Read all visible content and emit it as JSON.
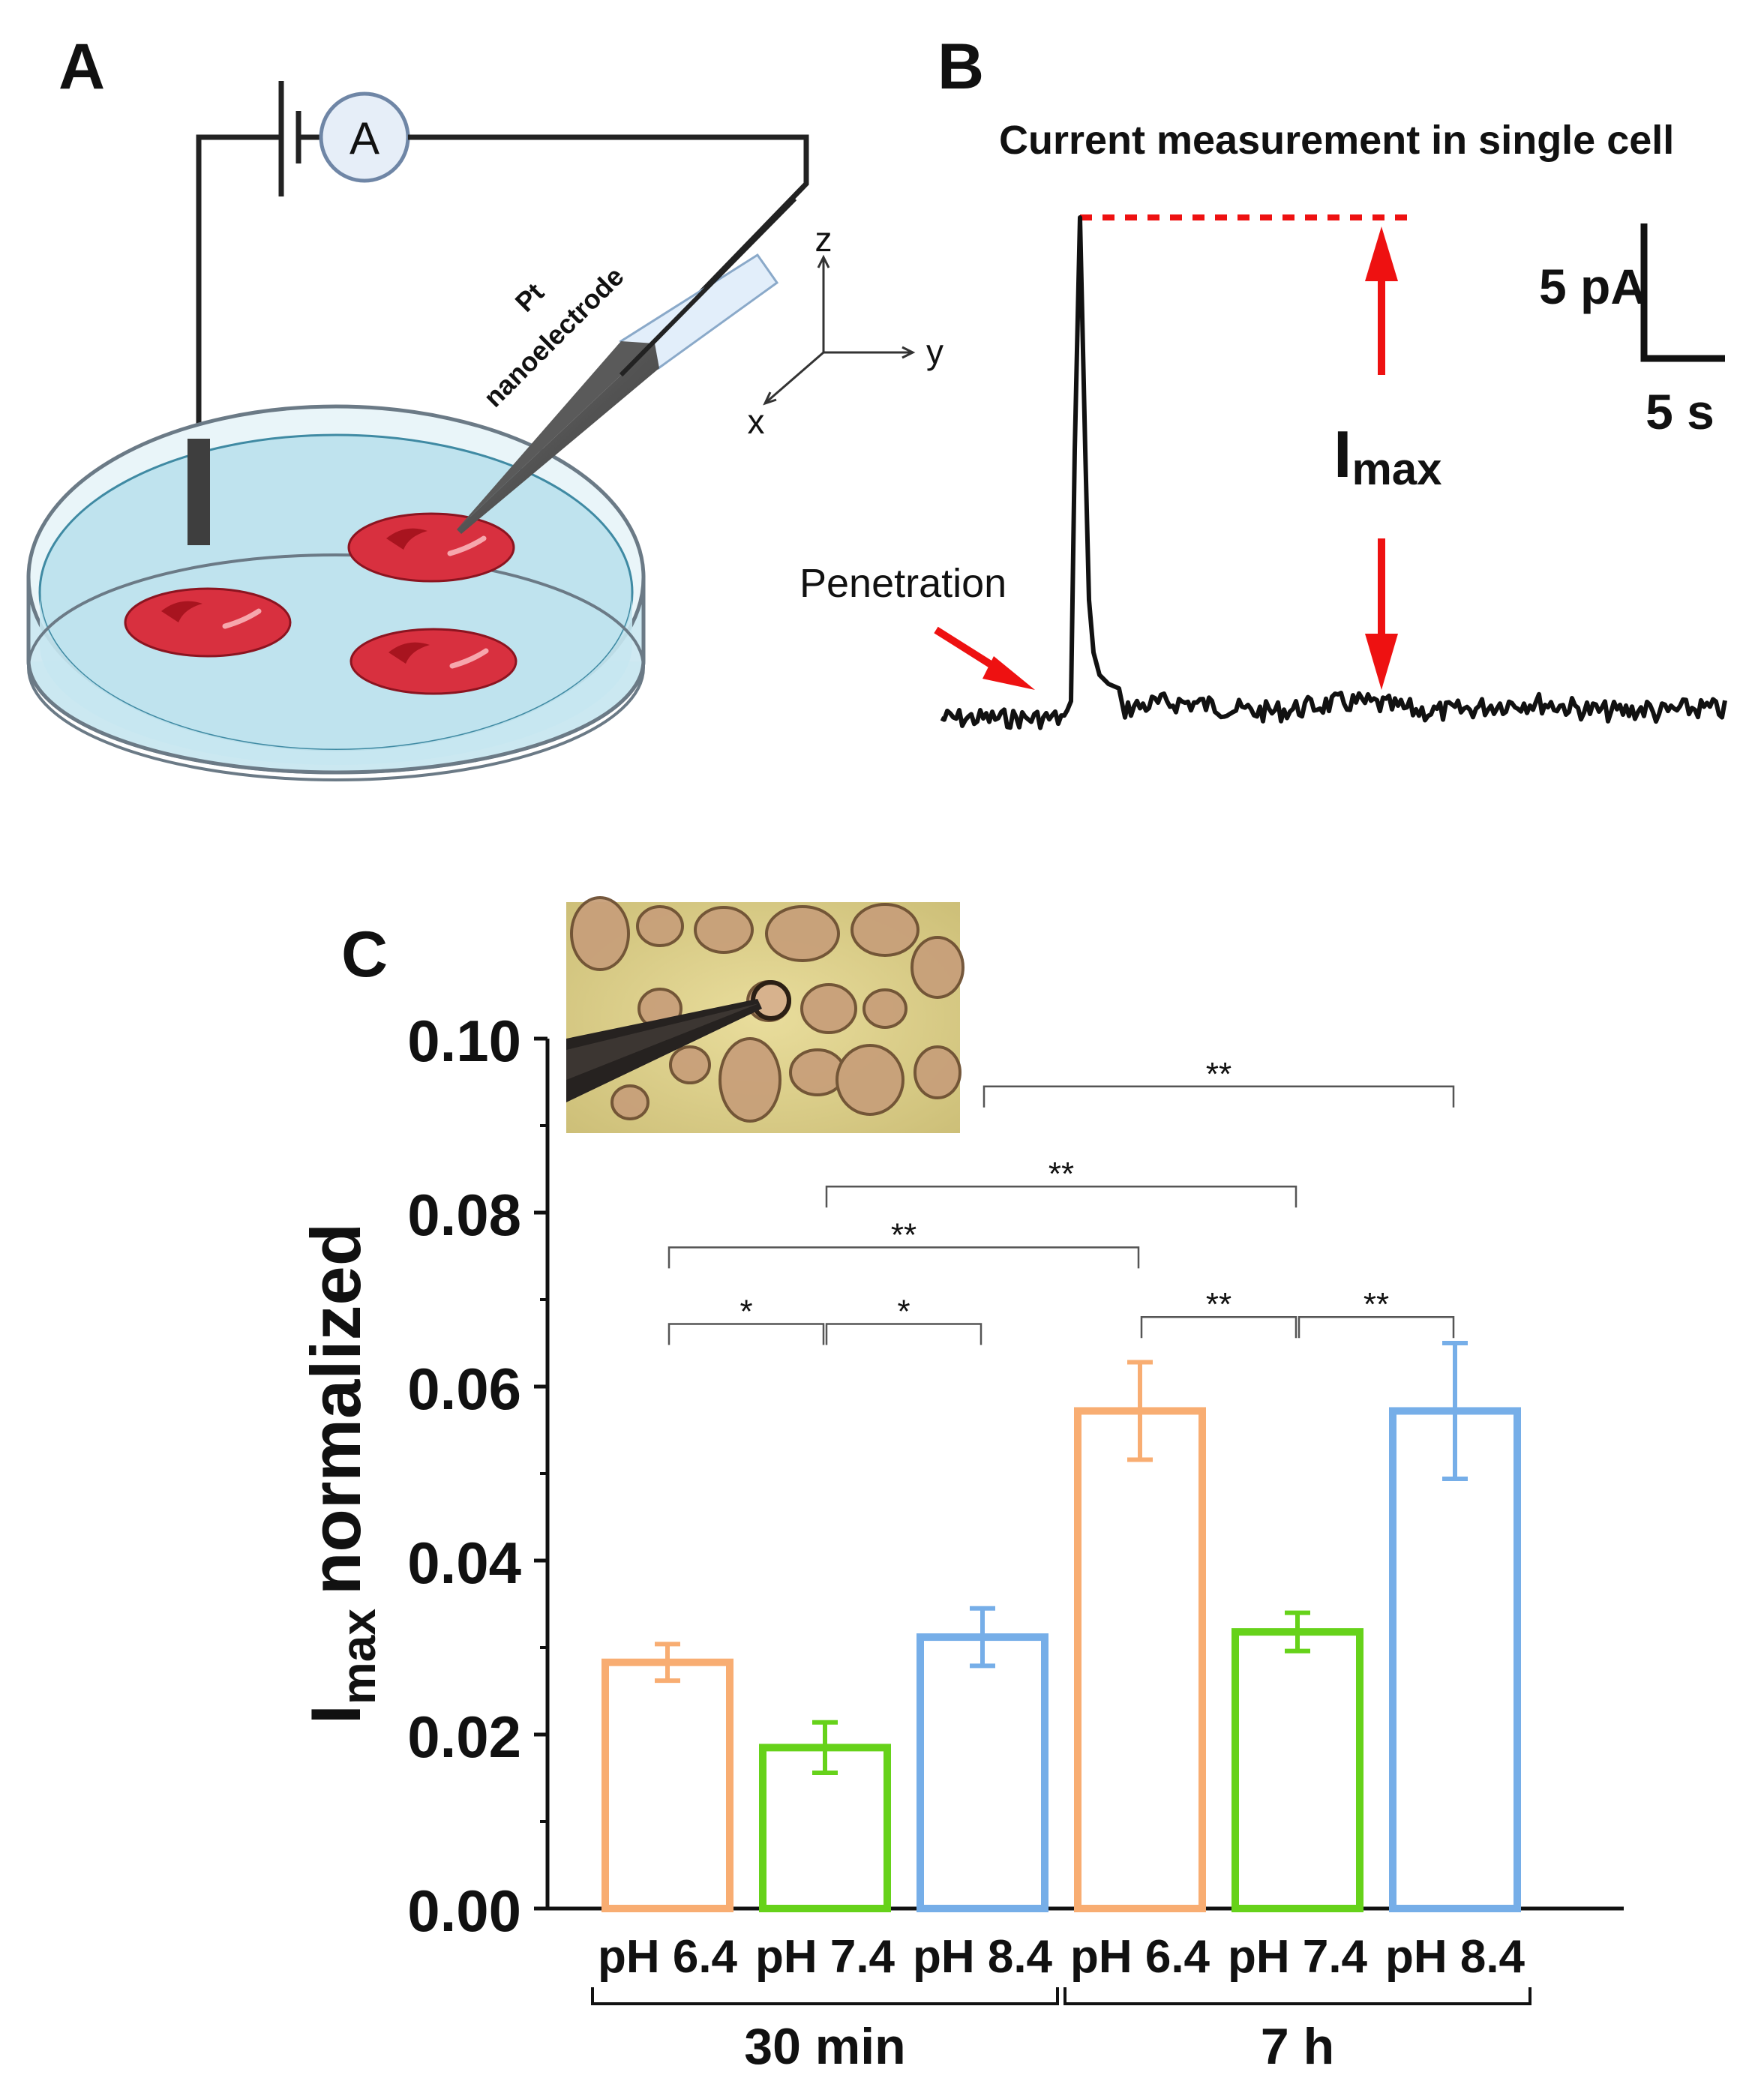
{
  "panels": {
    "a": {
      "letter": "A",
      "ammeter_label": "A",
      "electrode_label_line1": "Pt",
      "electrode_label_line2": "nanoelectrode",
      "axis_z": "z",
      "axis_y": "y",
      "axis_x": "x"
    },
    "b": {
      "letter": "B",
      "title": "Current measurement in single cell",
      "scale_current": "5 pA",
      "scale_time": "5 s",
      "imax_main": "I",
      "imax_sub": "max",
      "penetration_label": "Penetration"
    },
    "c": {
      "letter": "C"
    }
  },
  "colors": {
    "orange": "#F8AD72",
    "green": "#66D21A",
    "blue": "#76AEE8",
    "red": "#EE1111",
    "cell_red": "#D92E3E",
    "dish_fill": "#D6EEF5",
    "liquid": "#BFE3EE"
  },
  "chart_data": {
    "type": "bar",
    "ylabel_main": "I",
    "ylabel_sub": "max",
    "ylabel_rest": "normalized",
    "ylim": [
      0,
      0.1
    ],
    "yticks": [
      "0.00",
      "0.02",
      "0.04",
      "0.06",
      "0.08",
      "0.10"
    ],
    "categories": [
      "pH 6.4",
      "pH 7.4",
      "pH 8.4",
      "pH 6.4",
      "pH 7.4",
      "pH 8.4"
    ],
    "groups": [
      {
        "label": "30 min",
        "from": 0,
        "to": 2
      },
      {
        "label": "7 h",
        "from": 3,
        "to": 5
      }
    ],
    "values": [
      0.0283,
      0.0185,
      0.0312,
      0.0572,
      0.0318,
      0.0572
    ],
    "errors": [
      0.0021,
      0.0029,
      0.0033,
      0.0056,
      0.0022,
      0.0078
    ],
    "bar_colors": [
      "#F8AD72",
      "#66D21A",
      "#76AEE8",
      "#F8AD72",
      "#66D21A",
      "#76AEE8"
    ],
    "significance": [
      {
        "from": 0,
        "to": 1,
        "y": 0.0672,
        "label": "*"
      },
      {
        "from": 1,
        "to": 2,
        "y": 0.0672,
        "label": "*"
      },
      {
        "from": 0,
        "to": 3,
        "y": 0.076,
        "label": "**"
      },
      {
        "from": 1,
        "to": 4,
        "y": 0.083,
        "label": "**"
      },
      {
        "from": 2,
        "to": 5,
        "y": 0.0945,
        "label": "**"
      },
      {
        "from": 3,
        "to": 4,
        "y": 0.068,
        "label": "**"
      },
      {
        "from": 4,
        "to": 5,
        "y": 0.068,
        "label": "**"
      }
    ]
  }
}
